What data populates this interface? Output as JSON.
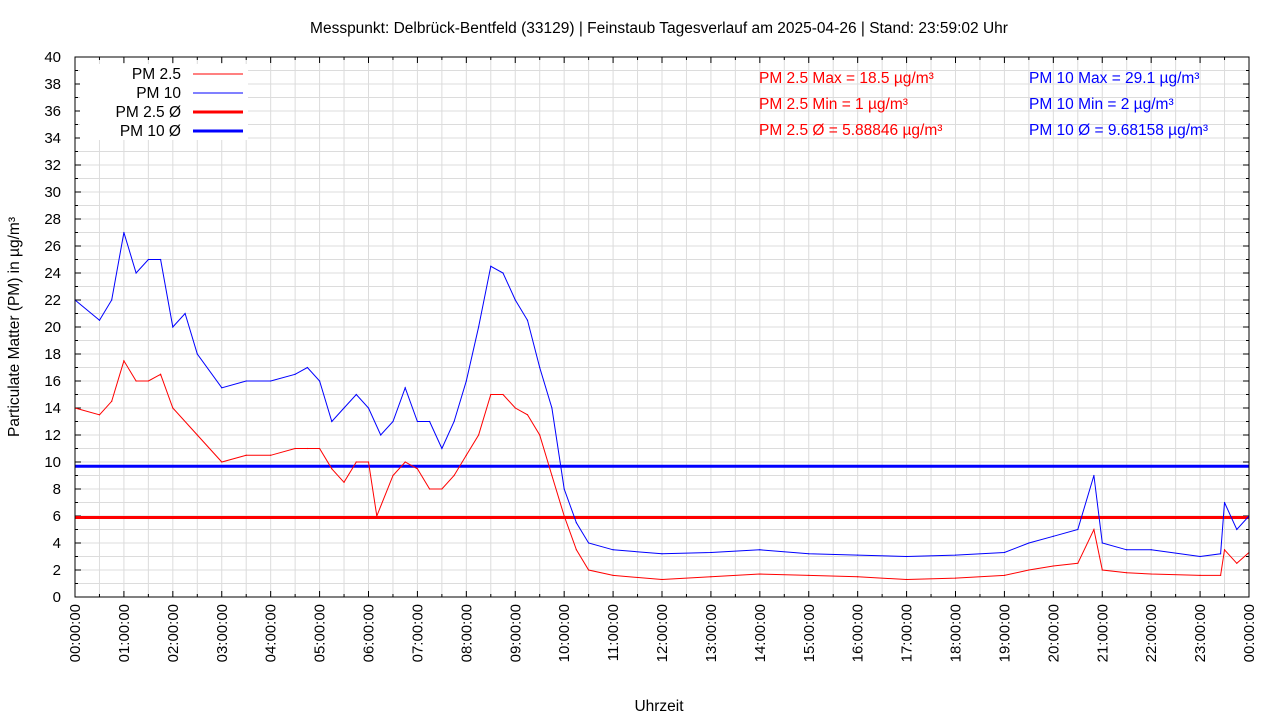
{
  "chart_data": {
    "type": "line",
    "title": "Messpunkt: Delbrück-Bentfeld (33129) | Feinstaub Tagesverlauf am 2025-04-26 | Stand: 23:59:02 Uhr",
    "xlabel": "Uhrzeit",
    "ylabel": "Particulate Matter (PM) in µg/m³",
    "xlim": [
      0,
      24
    ],
    "ylim": [
      0,
      40
    ],
    "grid": true,
    "legend_position": "top-left",
    "x_tick_labels": [
      "00:00:00",
      "01:00:00",
      "02:00:00",
      "03:00:00",
      "04:00:00",
      "05:00:00",
      "06:00:00",
      "07:00:00",
      "08:00:00",
      "09:00:00",
      "10:00:00",
      "11:00:00",
      "12:00:00",
      "13:00:00",
      "14:00:00",
      "15:00:00",
      "16:00:00",
      "17:00:00",
      "18:00:00",
      "19:00:00",
      "20:00:00",
      "21:00:00",
      "22:00:00",
      "23:00:00",
      "00:00:00"
    ],
    "y_tick_labels": [
      "0",
      "2",
      "4",
      "6",
      "8",
      "10",
      "12",
      "14",
      "16",
      "18",
      "20",
      "22",
      "24",
      "26",
      "28",
      "30",
      "32",
      "34",
      "36",
      "38",
      "40"
    ],
    "legend": [
      "PM 2.5",
      "PM 10",
      "PM 2.5 Ø",
      "PM 10 Ø"
    ],
    "stats": {
      "pm25": [
        "PM 2.5 Max = 18.5 µg/m³",
        "PM 2.5 Min = 1 µg/m³",
        "PM 2.5 Ø = 5.88846 µg/m³"
      ],
      "pm10": [
        "PM 10 Max = 29.1 µg/m³",
        "PM 10 Min = 2 µg/m³",
        "PM 10 Ø = 9.68158 µg/m³"
      ]
    },
    "series": [
      {
        "name": "PM 2.5",
        "color": "#ff0000",
        "x": [
          0,
          0.5,
          0.75,
          1,
          1.25,
          1.5,
          1.75,
          2,
          2.5,
          3,
          3.5,
          4,
          4.5,
          4.75,
          5,
          5.25,
          5.5,
          5.75,
          6,
          6.17,
          6.5,
          6.75,
          7,
          7.25,
          7.5,
          7.75,
          8,
          8.25,
          8.5,
          8.75,
          9,
          9.25,
          9.5,
          9.75,
          10,
          10.25,
          10.5,
          11,
          12,
          13,
          14,
          15,
          16,
          17,
          18,
          19,
          19.5,
          20,
          20.5,
          20.83,
          21,
          21.5,
          22,
          23,
          23.42,
          23.5,
          23.75,
          24
        ],
        "values": [
          14,
          13.5,
          14.5,
          17.5,
          16,
          16,
          16.5,
          14,
          12,
          10,
          10.5,
          10.5,
          11,
          11,
          11,
          9.5,
          8.5,
          10,
          10,
          6,
          9,
          10,
          9.5,
          8,
          8,
          9,
          10.5,
          12,
          15,
          15,
          14,
          13.5,
          12,
          9,
          6,
          3.5,
          2,
          1.6,
          1.3,
          1.5,
          1.7,
          1.6,
          1.5,
          1.3,
          1.4,
          1.6,
          2,
          2.3,
          2.5,
          5,
          2,
          1.8,
          1.7,
          1.6,
          1.6,
          3.5,
          2.5,
          3.3
        ]
      },
      {
        "name": "PM 10",
        "color": "#0000ff",
        "x": [
          0,
          0.5,
          0.75,
          1,
          1.25,
          1.5,
          1.75,
          2,
          2.25,
          2.5,
          3,
          3.5,
          4,
          4.5,
          4.75,
          5,
          5.25,
          5.5,
          5.75,
          6,
          6.25,
          6.5,
          6.75,
          7,
          7.25,
          7.5,
          7.75,
          8,
          8.25,
          8.5,
          8.75,
          9,
          9.25,
          9.5,
          9.75,
          10,
          10.25,
          10.5,
          11,
          12,
          13,
          14,
          15,
          16,
          17,
          18,
          19,
          19.5,
          20,
          20.5,
          20.83,
          21,
          21.5,
          22,
          23,
          23.42,
          23.5,
          23.75,
          24
        ],
        "values": [
          22,
          20.5,
          22,
          27,
          24,
          25,
          25,
          20,
          21,
          18,
          15.5,
          16,
          16,
          16.5,
          17,
          16,
          13,
          14,
          15,
          14,
          12,
          13,
          15.5,
          13,
          13,
          11,
          13,
          16,
          20,
          24.5,
          24,
          22,
          20.5,
          17,
          14,
          8,
          5.5,
          4,
          3.5,
          3.2,
          3.3,
          3.5,
          3.2,
          3.1,
          3,
          3.1,
          3.3,
          4,
          4.5,
          5,
          9,
          4,
          3.5,
          3.5,
          3,
          3.2,
          7,
          5,
          6
        ]
      },
      {
        "name": "PM 2.5 Ø",
        "color": "#ff0000",
        "constant": 5.88846
      },
      {
        "name": "PM 10 Ø",
        "color": "#0000ff",
        "constant": 9.68158
      }
    ]
  }
}
